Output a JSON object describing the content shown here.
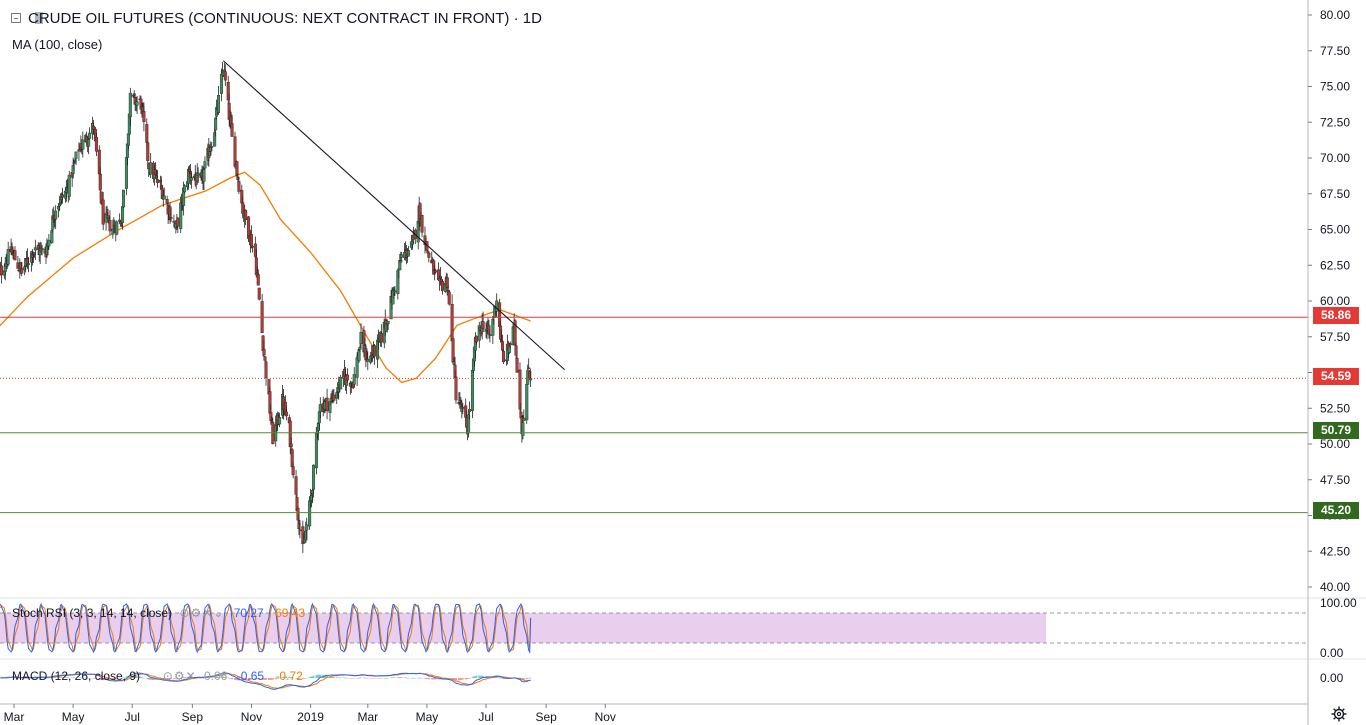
{
  "header": {
    "title": "CRUDE OIL FUTURES (CONTINUOUS: NEXT CONTRACT IN FRONT) · 1D",
    "ma_label": "MA (100, close)"
  },
  "colors": {
    "up": "#26a69a",
    "down": "#ef5350",
    "up_body": "#3e8e5e",
    "down_body": "#b23b36",
    "ma": "#f57c00",
    "resistance": "#e53935",
    "support_green": "#558b2f",
    "current": "#e53935",
    "trendline": "#131722",
    "rsi_band": "#e1bee7",
    "stoch_k": "#2962ff",
    "stoch_d": "#f57c00"
  },
  "chart_data": [
    {
      "type": "candlestick",
      "title": "CRUDE OIL FUTURES (CONTINUOUS: NEXT CONTRACT IN FRONT) · 1D",
      "ylim": [
        40,
        80
      ],
      "y_ticks": [
        80,
        77.5,
        75,
        72.5,
        70,
        67.5,
        65,
        62.5,
        60,
        57.5,
        55,
        52.5,
        50,
        47.5,
        45,
        42.5,
        40
      ],
      "x_ticks": [
        "Mar",
        "May",
        "Jul",
        "Sep",
        "Nov",
        "2019",
        "Mar",
        "May",
        "Jul",
        "Sep",
        "Nov"
      ],
      "x_tick_dates": [
        "2018-03-01",
        "2018-05-01",
        "2018-07-01",
        "2018-09-01",
        "2018-11-01",
        "2019-01-01",
        "2019-03-01",
        "2019-05-01",
        "2019-07-01",
        "2019-09-01",
        "2019-11-01"
      ],
      "close_path": [
        [
          "2018-02-12",
          61.6
        ],
        [
          "2018-02-26",
          63.5
        ],
        [
          "2018-03-09",
          62.0
        ],
        [
          "2018-03-20",
          63.5
        ],
        [
          "2018-04-03",
          63.5
        ],
        [
          "2018-04-13",
          66.6
        ],
        [
          "2018-04-25",
          67.8
        ],
        [
          "2018-05-07",
          70.7
        ],
        [
          "2018-05-14",
          71.3
        ],
        [
          "2018-05-22",
          72.2
        ],
        [
          "2018-06-01",
          65.8
        ],
        [
          "2018-06-11",
          65.1
        ],
        [
          "2018-06-20",
          65.7
        ],
        [
          "2018-06-29",
          74.1
        ],
        [
          "2018-07-10",
          73.8
        ],
        [
          "2018-07-18",
          69.5
        ],
        [
          "2018-08-01",
          67.7
        ],
        [
          "2018-08-15",
          65.0
        ],
        [
          "2018-08-28",
          69.0
        ],
        [
          "2018-09-10",
          68.2
        ],
        [
          "2018-09-24",
          72.1
        ],
        [
          "2018-10-03",
          76.4
        ],
        [
          "2018-10-12",
          71.3
        ],
        [
          "2018-10-23",
          66.4
        ],
        [
          "2018-11-05",
          63.1
        ],
        [
          "2018-11-14",
          56.3
        ],
        [
          "2018-11-23",
          50.4
        ],
        [
          "2018-12-03",
          53.0
        ],
        [
          "2018-12-10",
          51.0
        ],
        [
          "2018-12-17",
          46.2
        ],
        [
          "2018-12-24",
          42.5
        ],
        [
          "2019-01-02",
          46.5
        ],
        [
          "2019-01-10",
          52.6
        ],
        [
          "2019-01-22",
          53.0
        ],
        [
          "2019-02-04",
          54.6
        ],
        [
          "2019-02-14",
          54.4
        ],
        [
          "2019-02-22",
          57.3
        ],
        [
          "2019-03-01",
          55.8
        ],
        [
          "2019-03-12",
          56.9
        ],
        [
          "2019-03-22",
          59.0
        ],
        [
          "2019-04-05",
          63.1
        ],
        [
          "2019-04-16",
          63.8
        ],
        [
          "2019-04-23",
          66.3
        ],
        [
          "2019-05-01",
          63.6
        ],
        [
          "2019-05-13",
          61.0
        ],
        [
          "2019-05-22",
          61.4
        ],
        [
          "2019-05-31",
          53.5
        ],
        [
          "2019-06-12",
          51.1
        ],
        [
          "2019-06-20",
          57.1
        ],
        [
          "2019-06-28",
          58.5
        ],
        [
          "2019-07-05",
          57.5
        ],
        [
          "2019-07-12",
          60.2
        ],
        [
          "2019-07-19",
          55.6
        ],
        [
          "2019-07-30",
          58.0
        ],
        [
          "2019-08-07",
          51.1
        ],
        [
          "2019-08-14",
          55.3
        ],
        [
          "2019-08-16",
          54.59
        ]
      ],
      "ma_100_path": [
        [
          "2018-02-12",
          58.1
        ],
        [
          "2018-03-15",
          60.3
        ],
        [
          "2018-05-01",
          63.0
        ],
        [
          "2018-06-15",
          64.9
        ],
        [
          "2018-08-01",
          66.7
        ],
        [
          "2018-09-15",
          67.7
        ],
        [
          "2018-10-10",
          68.6
        ],
        [
          "2018-10-25",
          69.0
        ],
        [
          "2018-11-10",
          68.1
        ],
        [
          "2018-12-01",
          65.7
        ],
        [
          "2019-01-01",
          63.4
        ],
        [
          "2019-02-01",
          60.7
        ],
        [
          "2019-03-01",
          57.4
        ],
        [
          "2019-03-20",
          55.3
        ],
        [
          "2019-04-05",
          54.3
        ],
        [
          "2019-04-20",
          54.6
        ],
        [
          "2019-05-10",
          56.0
        ],
        [
          "2019-06-01",
          58.3
        ],
        [
          "2019-06-20",
          58.8
        ],
        [
          "2019-07-15",
          59.4
        ],
        [
          "2019-08-16",
          58.6
        ]
      ],
      "trendline": [
        [
          "2018-10-03",
          76.8
        ],
        [
          "2019-09-20",
          55.2
        ]
      ],
      "horizontal_levels": [
        {
          "value": 58.86,
          "label": "58.86",
          "color": "#e53935",
          "style": "solid"
        },
        {
          "value": 54.59,
          "label": "54.59",
          "color": "#e53935",
          "style": "dotted"
        },
        {
          "value": 50.79,
          "label": "50.79",
          "color": "#558b2f",
          "style": "solid"
        },
        {
          "value": 45.2,
          "label": "45.20",
          "color": "#558b2f",
          "style": "solid"
        }
      ],
      "grid": false
    },
    {
      "type": "line",
      "title": "Stoch RSI (3, 3, 14, 14, close)",
      "ylim": [
        0,
        100
      ],
      "y_ticks": [
        100,
        0
      ],
      "bands": [
        20,
        80
      ],
      "last_k": 70.27,
      "last_d": 69.43
    },
    {
      "type": "line",
      "title": "MACD (12, 26, close, 9)",
      "y_ticks": [
        0
      ],
      "last_hist": 0.06,
      "last_macd": -0.65,
      "last_signal": -0.72
    }
  ],
  "legend": {
    "stoch_label": "Stoch RSI (3, 3, 14, 14, close)",
    "stoch_k": "70.27",
    "stoch_d": "69.43",
    "macd_label": "MACD (12, 26, close, 9)",
    "macd_hist": "0.06",
    "macd_line": "-0.65",
    "macd_signal": "-0.72"
  },
  "price_tags": {
    "resistance": "58.86",
    "current": "54.59",
    "support1": "50.79",
    "support2": "45.20"
  },
  "y_labels_main": [
    "80.00",
    "77.50",
    "75.00",
    "72.50",
    "70.00",
    "67.50",
    "65.00",
    "62.50",
    "60.00",
    "57.50",
    "55.00",
    "52.50",
    "50.00",
    "47.50",
    "45.00",
    "42.50",
    "40.00"
  ],
  "y_labels_stoch": [
    "100.00",
    "0.00"
  ],
  "y_labels_macd": [
    "0.00"
  ],
  "x_labels": [
    "Mar",
    "May",
    "Jul",
    "Sep",
    "Nov",
    "2019",
    "Mar",
    "May",
    "Jul",
    "Sep",
    "Nov"
  ]
}
